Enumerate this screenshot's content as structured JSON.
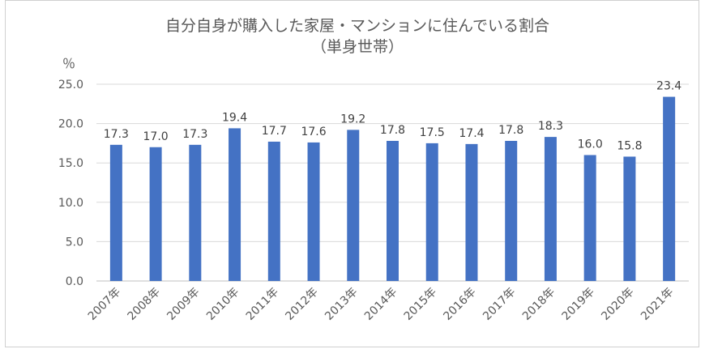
{
  "chart_data": {
    "type": "bar",
    "title": "自分自身が購入した家屋・マンションに住んでいる割合",
    "subtitle": "（単身世帯）",
    "ylabel": "％",
    "xlabel": "",
    "categories": [
      "2007年",
      "2008年",
      "2009年",
      "2010年",
      "2011年",
      "2012年",
      "2013年",
      "2014年",
      "2015年",
      "2016年",
      "2017年",
      "2018年",
      "2019年",
      "2020年",
      "2021年"
    ],
    "values": [
      17.3,
      17.0,
      17.3,
      19.4,
      17.7,
      17.6,
      19.2,
      17.8,
      17.5,
      17.4,
      17.8,
      18.3,
      16.0,
      15.8,
      23.4
    ],
    "value_labels": [
      "17.3",
      "17.0",
      "17.3",
      "19.4",
      "17.7",
      "17.6",
      "19.2",
      "17.8",
      "17.5",
      "17.4",
      "17.8",
      "18.3",
      "16.0",
      "15.8",
      "23.4"
    ],
    "yticks": [
      "0.0",
      "5.0",
      "10.0",
      "15.0",
      "20.0",
      "25.0"
    ],
    "ylim": [
      0,
      25
    ],
    "grid": true,
    "legend": "none",
    "bar_color": "#4472c4"
  }
}
